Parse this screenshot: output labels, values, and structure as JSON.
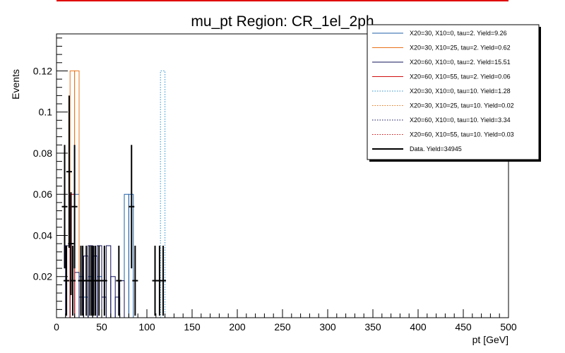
{
  "chart_data": {
    "type": "histogram",
    "title": "mu_pt Region: CR_1el_2ph",
    "xlabel": "pt [GeV]",
    "ylabel": "Events",
    "xlim": [
      0,
      500
    ],
    "ylim": [
      0,
      0.138
    ],
    "x_ticks": [
      0,
      50,
      100,
      150,
      200,
      250,
      300,
      350,
      400,
      450,
      500
    ],
    "y_ticks": [
      0.02,
      0.04,
      0.06,
      0.08,
      0.1,
      0.12
    ],
    "x_tick_labels": [
      "0",
      "50",
      "100",
      "150",
      "200",
      "250",
      "300",
      "350",
      "400",
      "450",
      "500"
    ],
    "y_tick_labels": [
      "0.02",
      "0.04",
      "0.06",
      "0.08",
      "0.1",
      "0.12"
    ],
    "grid": false,
    "legend_position": "top-right",
    "bin_width": 5,
    "series": [
      {
        "name": "X20=30, X10=0, tau=2. Yield=9.26",
        "color": "#1f5fa8",
        "style": "solid",
        "bins": [
          [
            15,
            0.06
          ],
          [
            20,
            0.06
          ],
          [
            25,
            0.02
          ],
          [
            30,
            0.01
          ],
          [
            35,
            0.02
          ],
          [
            40,
            0.03
          ],
          [
            45,
            0.02
          ],
          [
            75,
            0.06
          ],
          [
            80,
            0.06
          ]
        ]
      },
      {
        "name": "X20=30, X10=25, tau=2. Yield=0.62",
        "color": "#e8741a",
        "style": "solid",
        "bins": [
          [
            15,
            0.12
          ],
          [
            20,
            0.12
          ]
        ]
      },
      {
        "name": "X20=60, X10=0, tau=2. Yield=15.51",
        "color": "#10105a",
        "style": "solid",
        "bins": [
          [
            10,
            0.035
          ],
          [
            15,
            0.018
          ],
          [
            20,
            0.022
          ],
          [
            25,
            0.01
          ],
          [
            30,
            0.03
          ],
          [
            35,
            0.035
          ],
          [
            40,
            0.03
          ],
          [
            45,
            0.035
          ],
          [
            50,
            0.01
          ],
          [
            55,
            0.035
          ],
          [
            60,
            0.02
          ],
          [
            65,
            0.01
          ],
          [
            70,
            0.018
          ]
        ]
      },
      {
        "name": "X20=60, X10=55, tau=2. Yield=0.06",
        "color": "#d01010",
        "style": "solid",
        "bins": [
          [
            15,
            0.06
          ]
        ]
      },
      {
        "name": "X20=30, X10=0, tau=10. Yield=1.28",
        "color": "#2a8fd0",
        "style": "dotted",
        "bins": [
          [
            115,
            0.12
          ]
        ]
      },
      {
        "name": "X20=30, X10=25, tau=10. Yield=0.02",
        "color": "#e8741a",
        "style": "dotted",
        "bins": []
      },
      {
        "name": "X20=60, X10=0, tau=10. Yield=3.34",
        "color": "#10105a",
        "style": "dotted",
        "bins": []
      },
      {
        "name": "X20=60, X10=55, tau=10. Yield=0.03",
        "color": "#d01010",
        "style": "dotted",
        "bins": []
      }
    ],
    "data": {
      "name": "Data. Yield=34945",
      "color": "#000000",
      "points": [
        {
          "x": 9,
          "y": 0.054,
          "err": 0.03
        },
        {
          "x": 11,
          "y": 0.018,
          "err": 0.017
        },
        {
          "x": 14,
          "y": 0.071,
          "err": 0.037
        },
        {
          "x": 16,
          "y": 0.036,
          "err": 0.025
        },
        {
          "x": 18,
          "y": 0.018,
          "err": 0.017
        },
        {
          "x": 20,
          "y": 0.054,
          "err": 0.03
        },
        {
          "x": 27,
          "y": 0.018,
          "err": 0.017
        },
        {
          "x": 29,
          "y": 0.018,
          "err": 0.017
        },
        {
          "x": 33,
          "y": 0.018,
          "err": 0.017
        },
        {
          "x": 37,
          "y": 0.018,
          "err": 0.017
        },
        {
          "x": 39,
          "y": 0.018,
          "err": 0.017
        },
        {
          "x": 41,
          "y": 0.018,
          "err": 0.017
        },
        {
          "x": 43,
          "y": 0.018,
          "err": 0.017
        },
        {
          "x": 47,
          "y": 0.018,
          "err": 0.017
        },
        {
          "x": 53,
          "y": 0.018,
          "err": 0.017
        },
        {
          "x": 69,
          "y": 0.018,
          "err": 0.017
        },
        {
          "x": 83,
          "y": 0.054,
          "err": 0.03
        },
        {
          "x": 87,
          "y": 0.018,
          "err": 0.017
        },
        {
          "x": 109,
          "y": 0.018,
          "err": 0.017
        },
        {
          "x": 114,
          "y": 0.018,
          "err": 0.017
        },
        {
          "x": 118,
          "y": 0.018,
          "err": 0.017
        }
      ]
    }
  }
}
